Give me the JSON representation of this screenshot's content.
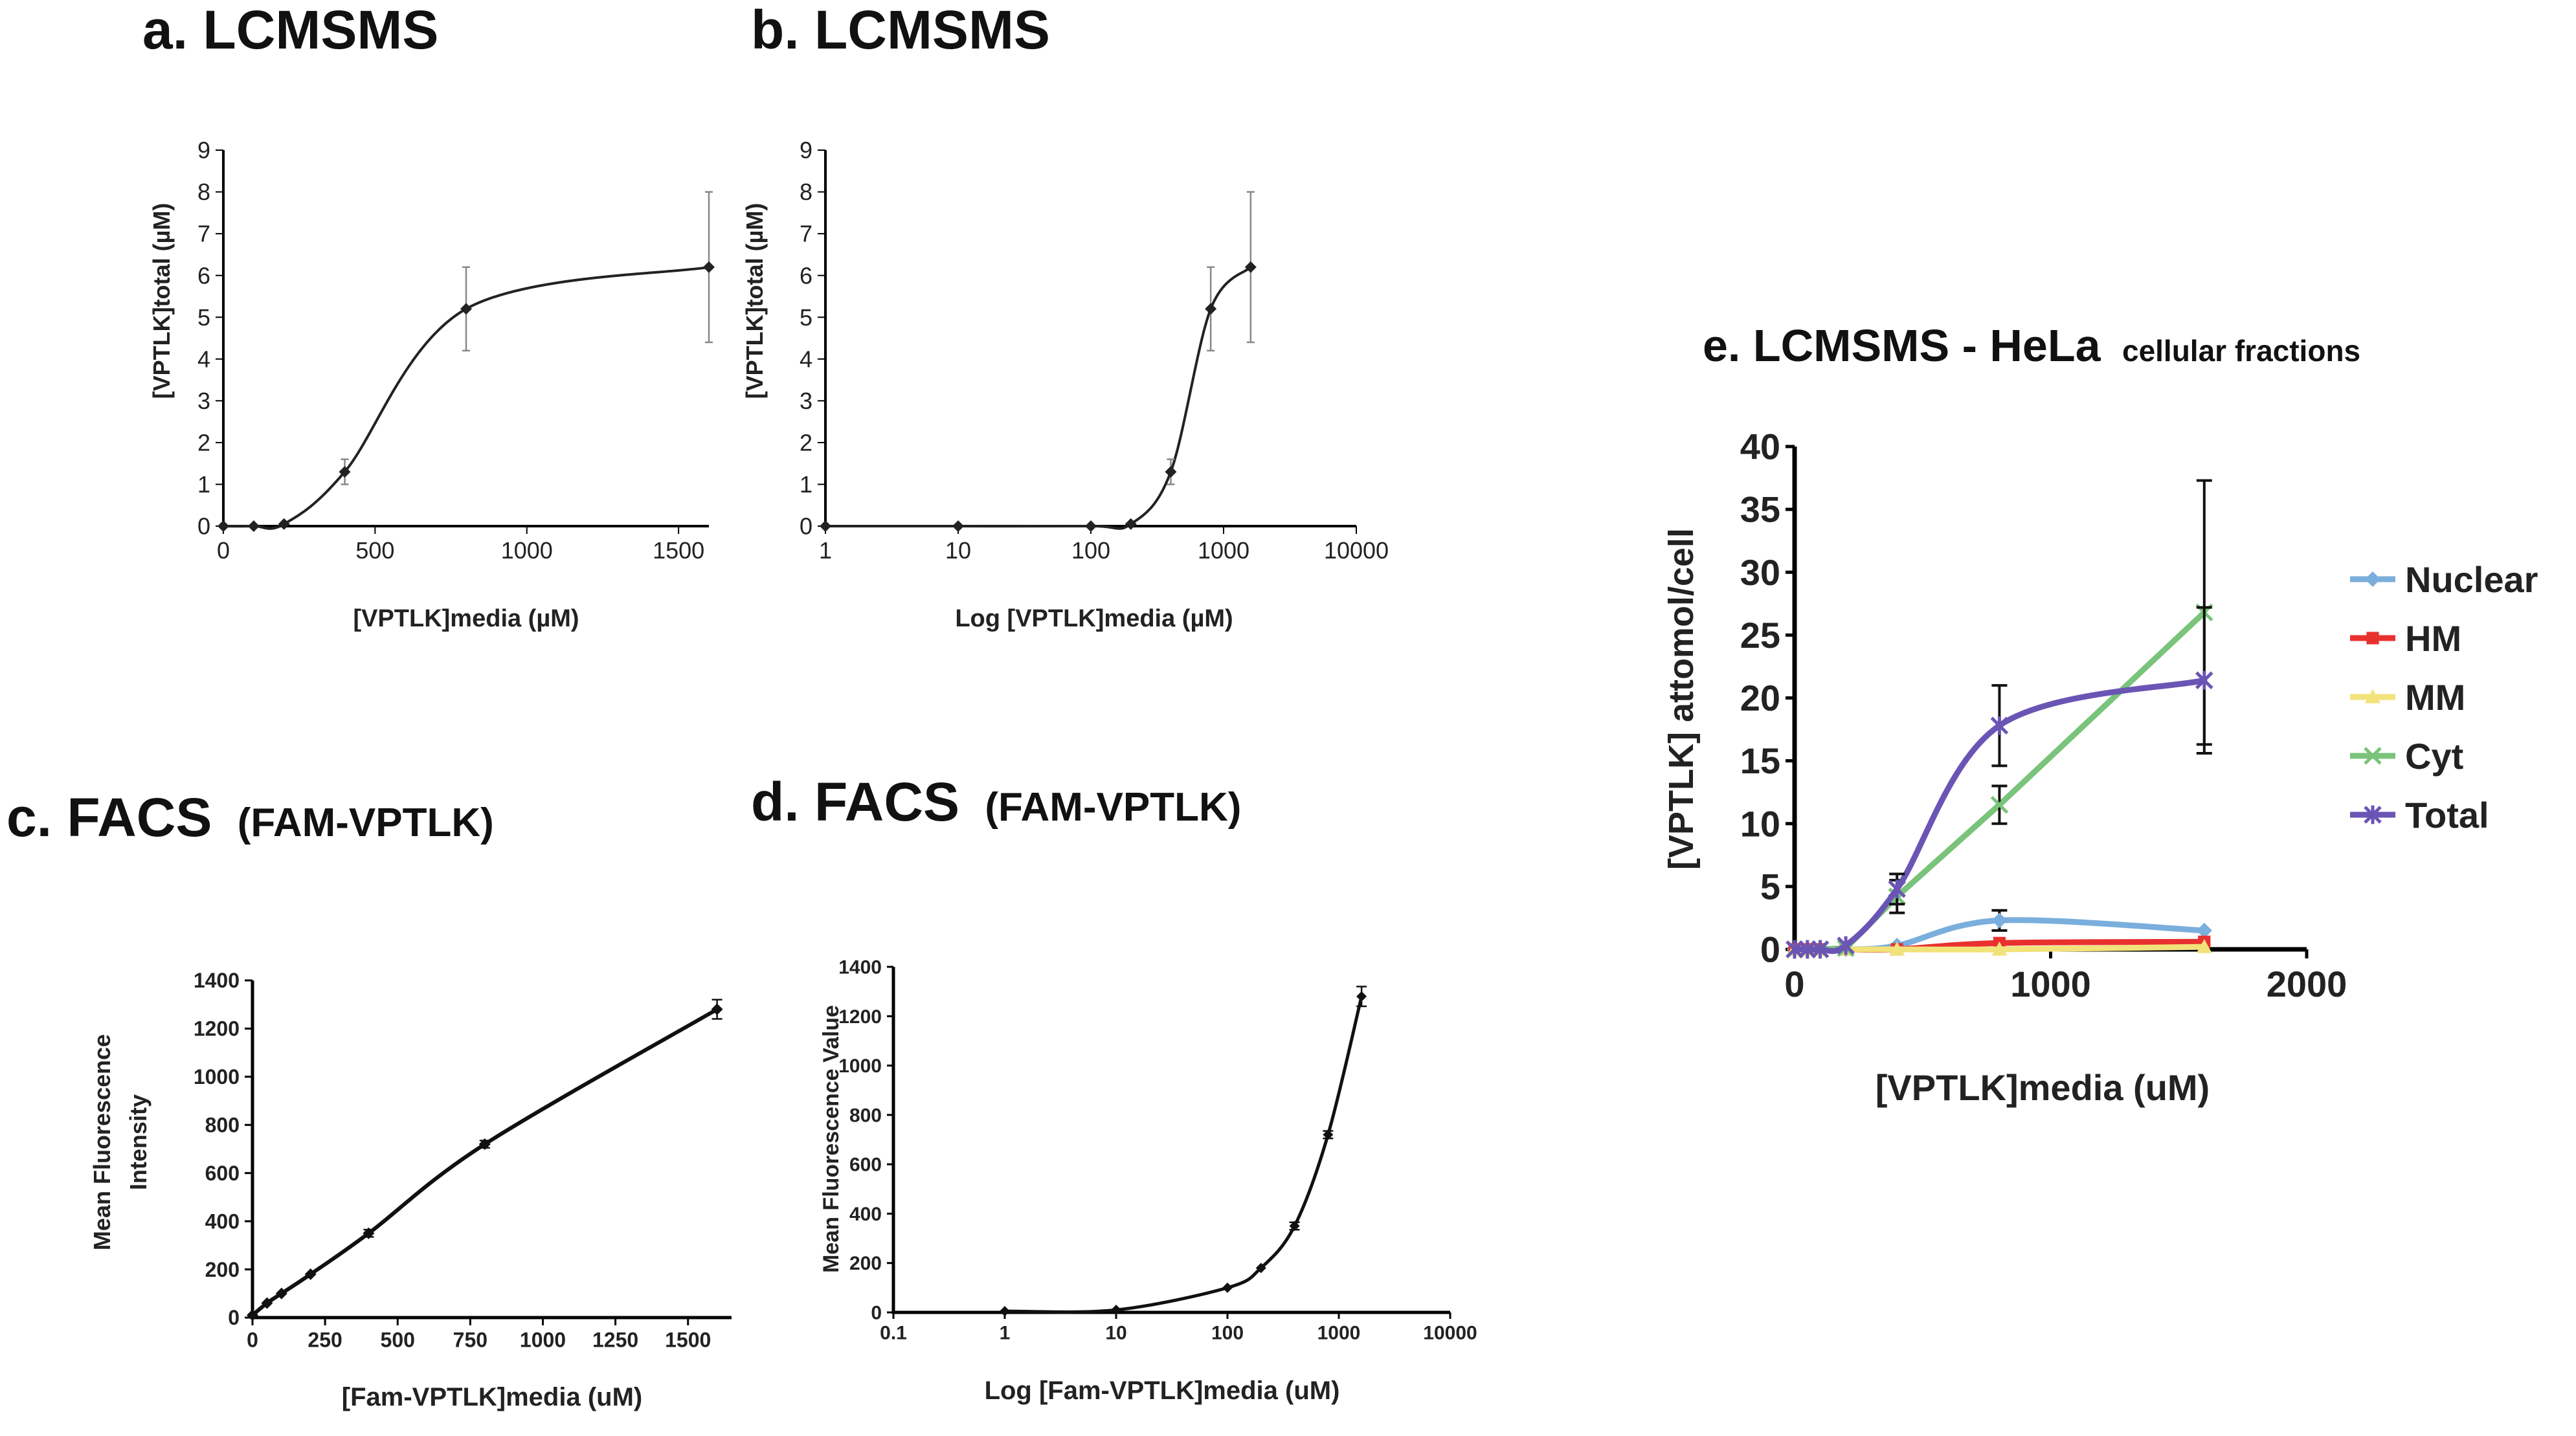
{
  "chart_data": [
    {
      "id": "a",
      "type": "line",
      "title": "a. LCMSMS",
      "xlabel": "[VPTLK]media (µM)",
      "ylabel": "[VPTLK]total (µM)",
      "xscale": "linear",
      "xlim": [
        0,
        1600
      ],
      "ylim": [
        0,
        9
      ],
      "xticks": [
        0,
        500,
        1000,
        1500
      ],
      "yticks": [
        0,
        1,
        2,
        3,
        4,
        5,
        6,
        7,
        8,
        9
      ],
      "series": [
        {
          "name": "VPTLK total",
          "x": [
            0,
            100,
            200,
            400,
            800,
            1600
          ],
          "y": [
            0,
            0,
            0.05,
            1.3,
            5.2,
            6.2
          ],
          "err": [
            0,
            0,
            0,
            0.3,
            1.0,
            1.8
          ]
        }
      ]
    },
    {
      "id": "b",
      "type": "line",
      "title": "b. LCMSMS",
      "xlabel": "Log [VPTLK]media (µM)",
      "ylabel": "[VPTLK]total (µM)",
      "xscale": "log",
      "xlim": [
        1,
        10000
      ],
      "ylim": [
        0,
        9
      ],
      "xticks": [
        1,
        10,
        100,
        1000,
        10000
      ],
      "xtick_labels": [
        "1",
        "10",
        "100",
        "1000",
        "10000"
      ],
      "yticks": [
        0,
        1,
        2,
        3,
        4,
        5,
        6,
        7,
        8,
        9
      ],
      "series": [
        {
          "name": "VPTLK total",
          "x": [
            1,
            10,
            100,
            200,
            400,
            800,
            1600
          ],
          "y": [
            0,
            0,
            0,
            0.05,
            1.3,
            5.2,
            6.2
          ],
          "err": [
            0,
            0,
            0,
            0,
            0.3,
            1.0,
            1.8
          ]
        }
      ]
    },
    {
      "id": "c",
      "type": "line",
      "title": "c. FACS",
      "title_suffix": "(FAM-VPTLK)",
      "xlabel": "[Fam-VPTLK]media (uM)",
      "ylabel": [
        "Mean Fluorescence",
        "Intensity"
      ],
      "xscale": "linear",
      "xlim": [
        0,
        1650
      ],
      "ylim": [
        0,
        1400
      ],
      "xticks": [
        0,
        250,
        500,
        750,
        1000,
        1250,
        1500
      ],
      "yticks": [
        0,
        200,
        400,
        600,
        800,
        1000,
        1200,
        1400
      ],
      "series": [
        {
          "name": "FAM-VPTLK",
          "x": [
            0,
            50,
            100,
            200,
            400,
            800,
            1600
          ],
          "y": [
            10,
            60,
            100,
            180,
            350,
            720,
            1280
          ],
          "err": [
            0,
            0,
            0,
            0,
            15,
            15,
            40
          ]
        }
      ]
    },
    {
      "id": "d",
      "type": "line",
      "title": "d. FACS",
      "title_suffix": "(FAM-VPTLK)",
      "xlabel": "Log [Fam-VPTLK]media (uM)",
      "ylabel": "Mean Fluorescence Value",
      "xscale": "log",
      "xlim": [
        0.1,
        10000
      ],
      "ylim": [
        0,
        1400
      ],
      "xticks": [
        0.1,
        1,
        10,
        100,
        1000,
        10000
      ],
      "xtick_labels": [
        "0.1",
        "1",
        "10",
        "100",
        "1000",
        "10000"
      ],
      "yticks": [
        0,
        200,
        400,
        600,
        800,
        1000,
        1200,
        1400
      ],
      "series": [
        {
          "name": "FAM-VPTLK",
          "x": [
            1,
            10,
            100,
            200,
            400,
            800,
            1600
          ],
          "y": [
            5,
            10,
            100,
            180,
            350,
            720,
            1280
          ],
          "err": [
            0,
            0,
            0,
            0,
            15,
            15,
            40
          ]
        }
      ]
    },
    {
      "id": "e",
      "type": "line",
      "title": "e. LCMSMS - HeLa",
      "title_suffix": "cellular fractions",
      "xlabel": "[VPTLK]media (uM)",
      "ylabel": "[VPTLK] attomol/cell",
      "xscale": "linear",
      "xlim": [
        0,
        2000
      ],
      "ylim": [
        0,
        40
      ],
      "xticks": [
        0,
        1000,
        2000
      ],
      "yticks": [
        0,
        5,
        10,
        15,
        20,
        25,
        30,
        35,
        40
      ],
      "legend": "right",
      "series": [
        {
          "name": "Nuclear",
          "color": "#7aaedc",
          "marker": "diamond",
          "x": [
            0,
            50,
            100,
            200,
            400,
            800,
            1600
          ],
          "y": [
            0,
            0,
            0,
            0,
            0.3,
            2.3,
            1.5
          ],
          "err": [
            0,
            0,
            0,
            0,
            0,
            0.8,
            0
          ]
        },
        {
          "name": "HM",
          "color": "#e8312f",
          "marker": "square",
          "x": [
            0,
            50,
            100,
            200,
            400,
            800,
            1600
          ],
          "y": [
            0,
            0,
            0,
            0,
            0,
            0.5,
            0.6
          ],
          "err": [
            0,
            0,
            0,
            0,
            0,
            0,
            0
          ]
        },
        {
          "name": "MM",
          "color": "#f2e27a",
          "marker": "triangle",
          "x": [
            0,
            50,
            100,
            200,
            400,
            800,
            1600
          ],
          "y": [
            0,
            0,
            0,
            0,
            0,
            0,
            0.2
          ],
          "err": [
            0,
            0,
            0,
            0,
            0,
            0,
            0
          ]
        },
        {
          "name": "Cyt",
          "color": "#7ac37a",
          "marker": "x",
          "x": [
            0,
            50,
            100,
            200,
            400,
            800,
            1600
          ],
          "y": [
            0,
            0,
            0,
            0.1,
            4.2,
            11.5,
            26.8
          ],
          "err": [
            0,
            0,
            0,
            0,
            1.3,
            1.5,
            10.5
          ],
          "smooth": false
        },
        {
          "name": "Total",
          "color": "#6a55b5",
          "marker": "star",
          "x": [
            0,
            50,
            100,
            200,
            400,
            800,
            1600
          ],
          "y": [
            0,
            0,
            0,
            0.3,
            4.8,
            17.8,
            21.4
          ],
          "err": [
            0,
            0,
            0,
            0,
            1.2,
            3.2,
            5.8
          ]
        }
      ]
    }
  ]
}
